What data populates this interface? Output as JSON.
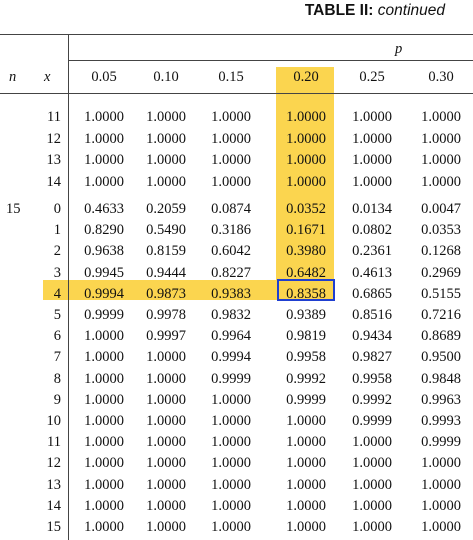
{
  "title": {
    "bold": "TABLE II:",
    "italic": "continued"
  },
  "headers": {
    "p_label": "p",
    "n_label": "n",
    "x_label": "x"
  },
  "p_values": [
    "0.05",
    "0.10",
    "0.15",
    "0.20",
    "0.25",
    "0.30"
  ],
  "colors": {
    "highlight": "#fbd54f",
    "selection_border": "#1f3fd0"
  },
  "n_value": "15",
  "rows": [
    {
      "x": "11",
      "v": [
        "1.0000",
        "1.0000",
        "1.0000",
        "1.0000",
        "1.0000",
        "1.0000"
      ]
    },
    {
      "x": "12",
      "v": [
        "1.0000",
        "1.0000",
        "1.0000",
        "1.0000",
        "1.0000",
        "1.0000"
      ]
    },
    {
      "x": "13",
      "v": [
        "1.0000",
        "1.0000",
        "1.0000",
        "1.0000",
        "1.0000",
        "1.0000"
      ]
    },
    {
      "x": "14",
      "v": [
        "1.0000",
        "1.0000",
        "1.0000",
        "1.0000",
        "1.0000",
        "1.0000"
      ]
    },
    {
      "x": "0",
      "v": [
        "0.4633",
        "0.2059",
        "0.0874",
        "0.0352",
        "0.0134",
        "0.0047"
      ]
    },
    {
      "x": "1",
      "v": [
        "0.8290",
        "0.5490",
        "0.3186",
        "0.1671",
        "0.0802",
        "0.0353"
      ]
    },
    {
      "x": "2",
      "v": [
        "0.9638",
        "0.8159",
        "0.6042",
        "0.3980",
        "0.2361",
        "0.1268"
      ]
    },
    {
      "x": "3",
      "v": [
        "0.9945",
        "0.9444",
        "0.8227",
        "0.6482",
        "0.4613",
        "0.2969"
      ]
    },
    {
      "x": "4",
      "v": [
        "0.9994",
        "0.9873",
        "0.9383",
        "0.8358",
        "0.6865",
        "0.5155"
      ]
    },
    {
      "x": "5",
      "v": [
        "0.9999",
        "0.9978",
        "0.9832",
        "0.9389",
        "0.8516",
        "0.7216"
      ]
    },
    {
      "x": "6",
      "v": [
        "1.0000",
        "0.9997",
        "0.9964",
        "0.9819",
        "0.9434",
        "0.8689"
      ]
    },
    {
      "x": "7",
      "v": [
        "1.0000",
        "1.0000",
        "0.9994",
        "0.9958",
        "0.9827",
        "0.9500"
      ]
    },
    {
      "x": "8",
      "v": [
        "1.0000",
        "1.0000",
        "0.9999",
        "0.9992",
        "0.9958",
        "0.9848"
      ]
    },
    {
      "x": "9",
      "v": [
        "1.0000",
        "1.0000",
        "1.0000",
        "0.9999",
        "0.9992",
        "0.9963"
      ]
    },
    {
      "x": "10",
      "v": [
        "1.0000",
        "1.0000",
        "1.0000",
        "1.0000",
        "0.9999",
        "0.9993"
      ]
    },
    {
      "x": "11",
      "v": [
        "1.0000",
        "1.0000",
        "1.0000",
        "1.0000",
        "1.0000",
        "0.9999"
      ]
    },
    {
      "x": "12",
      "v": [
        "1.0000",
        "1.0000",
        "1.0000",
        "1.0000",
        "1.0000",
        "1.0000"
      ]
    },
    {
      "x": "13",
      "v": [
        "1.0000",
        "1.0000",
        "1.0000",
        "1.0000",
        "1.0000",
        "1.0000"
      ]
    },
    {
      "x": "14",
      "v": [
        "1.0000",
        "1.0000",
        "1.0000",
        "1.0000",
        "1.0000",
        "1.0000"
      ]
    },
    {
      "x": "15",
      "v": [
        "1.0000",
        "1.0000",
        "1.0000",
        "1.0000",
        "1.0000",
        "1.0000"
      ]
    }
  ]
}
